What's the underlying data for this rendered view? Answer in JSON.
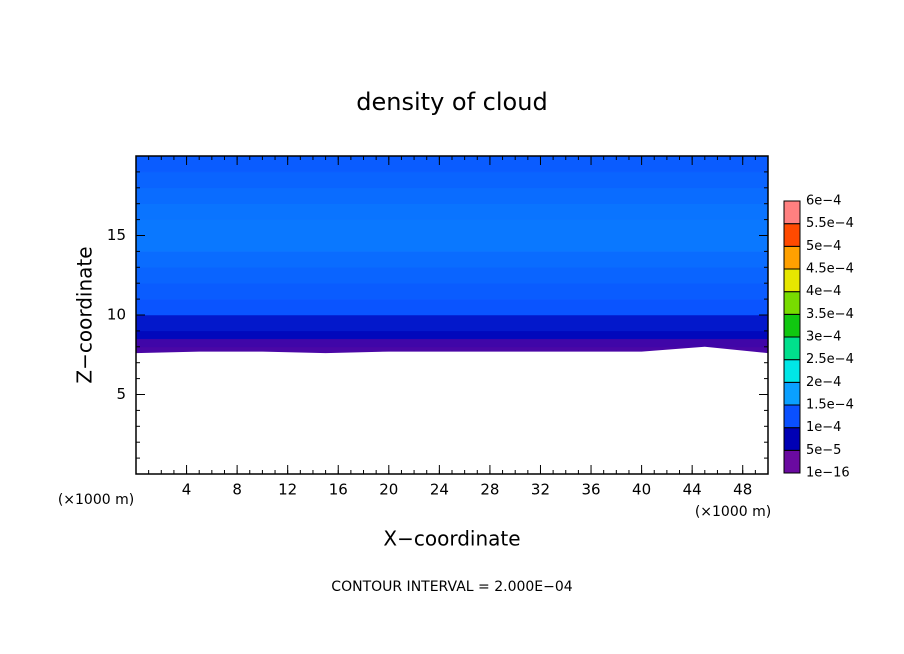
{
  "chart_data": {
    "type": "contour",
    "title": "density of cloud",
    "xlabel": "X−coordinate",
    "ylabel": "Z−coordinate",
    "x_unit_label": "(×1000 m)",
    "z_unit_label": "(×1000 m)",
    "footer": "CONTOUR INTERVAL = 2.000E−04",
    "xlim": [
      0,
      50
    ],
    "ylim": [
      0,
      20
    ],
    "xticks": [
      4,
      8,
      12,
      16,
      20,
      24,
      28,
      32,
      36,
      40,
      44,
      48
    ],
    "yticks": [
      5,
      10,
      15
    ],
    "profile": {
      "z_edges": [
        7,
        8,
        8.5,
        9,
        10,
        11,
        12,
        13,
        14,
        16,
        17,
        18,
        19,
        20
      ],
      "values": [
        3e-05,
        4e-05,
        6e-05,
        8e-05,
        0.000105,
        0.000115,
        0.000125,
        0.000135,
        0.00015,
        0.000145,
        0.000135,
        0.000125,
        0.000115
      ]
    },
    "cloud_base": {
      "x": [
        0,
        5,
        10,
        15,
        20,
        25,
        30,
        35,
        40,
        45,
        50
      ],
      "z": [
        7.6,
        7.7,
        7.7,
        7.6,
        7.7,
        7.7,
        7.7,
        7.7,
        7.7,
        8.0,
        7.6
      ]
    },
    "colorbar_ticks": [
      {
        "value": 1e-16,
        "label": "1e−16"
      },
      {
        "value": 5e-05,
        "label": "5e−5"
      },
      {
        "value": 0.0001,
        "label": "1e−4"
      },
      {
        "value": 0.00015,
        "label": "1.5e−4"
      },
      {
        "value": 0.0002,
        "label": "2e−4"
      },
      {
        "value": 0.00025,
        "label": "2.5e−4"
      },
      {
        "value": 0.0003,
        "label": "3e−4"
      },
      {
        "value": 0.00035,
        "label": "3.5e−4"
      },
      {
        "value": 0.0004,
        "label": "4e−4"
      },
      {
        "value": 0.00045,
        "label": "4.5e−4"
      },
      {
        "value": 0.0005,
        "label": "5e−4"
      },
      {
        "value": 0.00055,
        "label": "5.5e−4"
      },
      {
        "value": 0.0006,
        "label": "6e−4"
      }
    ],
    "colorbar_colors": [
      "#6a0aa0",
      "#0000b4",
      "#0a50ff",
      "#0aa0ff",
      "#00e6e6",
      "#00e08c",
      "#10c810",
      "#78dc00",
      "#e6e600",
      "#ffa000",
      "#ff4a00",
      "#ff8080"
    ]
  }
}
